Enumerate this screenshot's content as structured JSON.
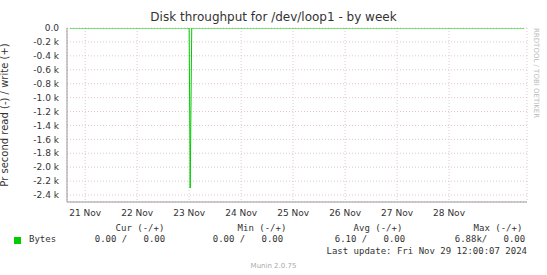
{
  "chart_data": {
    "type": "line",
    "title": "Disk throughput for /dev/loop1 - by week",
    "y_label": "Pr second read (-) / write (+)",
    "x": [
      20.7,
      23.0,
      23.02,
      23.05,
      29.45
    ],
    "series": [
      {
        "name": "Bytes",
        "color": "#00cc00",
        "values": [
          0,
          0,
          -2300,
          0,
          0
        ]
      }
    ],
    "xlim": [
      20.65,
      29.5
    ],
    "xticks": [
      {
        "value": 21,
        "label": "21 Nov"
      },
      {
        "value": 22,
        "label": "22 Nov"
      },
      {
        "value": 23,
        "label": "23 Nov"
      },
      {
        "value": 24,
        "label": "24 Nov"
      },
      {
        "value": 25,
        "label": "25 Nov"
      },
      {
        "value": 26,
        "label": "26 Nov"
      },
      {
        "value": 27,
        "label": "27 Nov"
      },
      {
        "value": 28,
        "label": "28 Nov"
      }
    ],
    "ylim": [
      -2500,
      0
    ],
    "yticks": [
      {
        "value": 0,
        "label": "0.0"
      },
      {
        "value": -200,
        "label": "-0.2 k"
      },
      {
        "value": -400,
        "label": "-0.4 k"
      },
      {
        "value": -600,
        "label": "-0.6 k"
      },
      {
        "value": -800,
        "label": "-0.8 k"
      },
      {
        "value": -1000,
        "label": "-1.0 k"
      },
      {
        "value": -1200,
        "label": "-1.2 k"
      },
      {
        "value": -1400,
        "label": "-1.4 k"
      },
      {
        "value": -1600,
        "label": "-1.6 k"
      },
      {
        "value": -1800,
        "label": "-1.8 k"
      },
      {
        "value": -2000,
        "label": "-2.0 k"
      },
      {
        "value": -2200,
        "label": "-2.2 k"
      },
      {
        "value": -2400,
        "label": "-2.4 k"
      }
    ],
    "grid": true,
    "stats": {
      "headers": [
        "Cur (-/+)",
        "Min (-/+)",
        "Avg (-/+)",
        "Max (-/+)"
      ],
      "rows": [
        {
          "name": "Bytes",
          "values": [
            "0.00 /   0.00",
            "0.00 /   0.00",
            "6.10 /   0.00",
            "6.88k/   0.00"
          ]
        }
      ]
    },
    "last_update": "Last update: Fri Nov 29 12:00:07 2024",
    "footer": "Munin 2.0.75",
    "side_text": "RRDTOOL / TOBI OETIKER"
  }
}
